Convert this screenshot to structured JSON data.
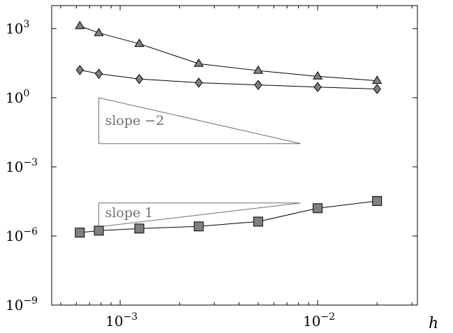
{
  "chart_data": {
    "type": "line",
    "xscale": "log",
    "yscale": "log",
    "xlabel": "h",
    "ylabel": "",
    "title": "",
    "xlim": [
      0.00045,
      0.032
    ],
    "ylim": [
      1e-09,
      10000
    ],
    "x_ticks": [
      {
        "value": 0.001,
        "base": "10",
        "exp": "−3"
      },
      {
        "value": 0.01,
        "base": "10",
        "exp": "−2"
      }
    ],
    "y_ticks": [
      {
        "value": 1e-09,
        "base": "10",
        "exp": "−9"
      },
      {
        "value": 1e-06,
        "base": "10",
        "exp": "−6"
      },
      {
        "value": 0.001,
        "base": "10",
        "exp": "−3"
      },
      {
        "value": 1,
        "base": "10",
        "exp": "0"
      },
      {
        "value": 1000,
        "base": "10",
        "exp": "3"
      }
    ],
    "grid": false,
    "series": [
      {
        "marker": "triangle",
        "color": "#808080",
        "x": [
          0.000625,
          0.00078,
          0.00125,
          0.0025,
          0.005,
          0.01,
          0.02
        ],
        "y": [
          1300,
          650,
          220,
          30,
          15,
          8.5,
          5.5
        ]
      },
      {
        "marker": "diamond",
        "color": "#808080",
        "x": [
          0.000625,
          0.00078,
          0.00125,
          0.0025,
          0.005,
          0.01,
          0.02
        ],
        "y": [
          16,
          11,
          6.5,
          4.5,
          3.6,
          2.9,
          2.4
        ]
      },
      {
        "marker": "square",
        "color": "#808080",
        "x": [
          0.000625,
          0.00078,
          0.00125,
          0.0025,
          0.005,
          0.01,
          0.02
        ],
        "y": [
          1.4e-06,
          1.7e-06,
          2.1e-06,
          2.6e-06,
          4.2e-06,
          1.6e-05,
          3.3e-05
        ]
      }
    ],
    "slope_triangles": [
      {
        "label": "slope −2",
        "x_left": 0.00078,
        "x_right": 0.0082,
        "y_top": 1,
        "y_bottom": 0.0102
      },
      {
        "label": "slope 1",
        "x_left": 0.00078,
        "x_right": 0.0082,
        "y_top": 2.7e-05,
        "y_bottom": 2.5e-06
      }
    ]
  }
}
